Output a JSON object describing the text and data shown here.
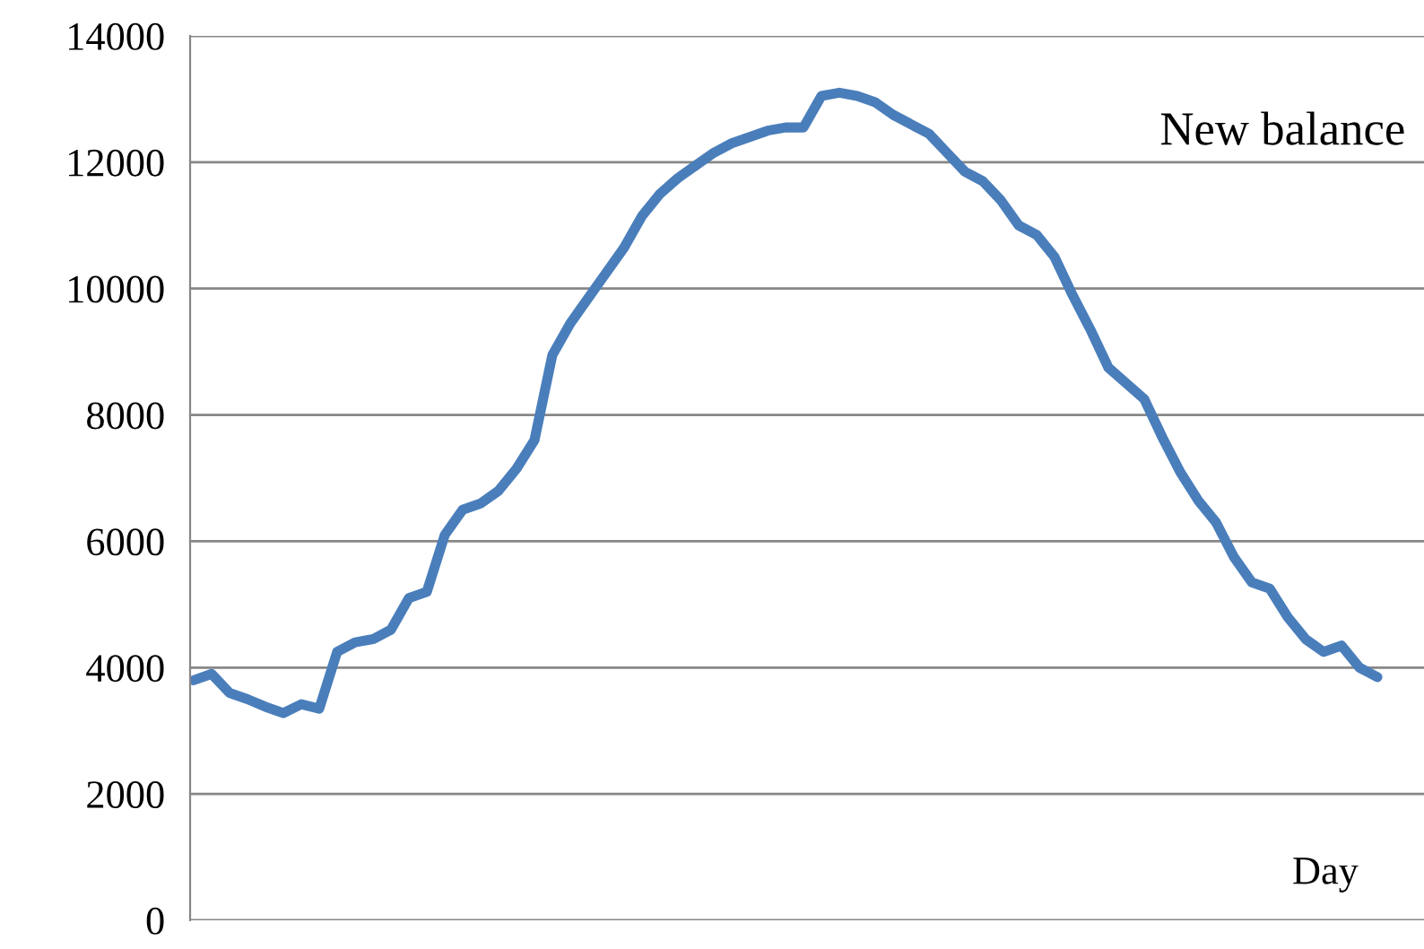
{
  "chart_data": {
    "type": "line",
    "xlabel": "Day",
    "categories": [
      null,
      null,
      null,
      null,
      null,
      null,
      null,
      null,
      null,
      null,
      null,
      null,
      null,
      null,
      null,
      null,
      null,
      null,
      null,
      null,
      null,
      null,
      null,
      null,
      null,
      null,
      null,
      null,
      null,
      null,
      null,
      null,
      null,
      null,
      null,
      null,
      null,
      null,
      null,
      null,
      null,
      null,
      null,
      null,
      null,
      null,
      null,
      null,
      null,
      null,
      null,
      null,
      null,
      null,
      null,
      null,
      null,
      null,
      null,
      null,
      null,
      null,
      null,
      null,
      null,
      null,
      null
    ],
    "series": [
      {
        "name": "New balance",
        "color": "#4a7ebb",
        "values": [
          3800,
          3900,
          3600,
          3500,
          3380,
          3280,
          3420,
          3350,
          4250,
          4400,
          4450,
          4600,
          5100,
          5200,
          6100,
          6500,
          6600,
          6800,
          7150,
          7600,
          8950,
          9450,
          9850,
          10250,
          10650,
          11150,
          11500,
          11750,
          11950,
          12150,
          12300,
          12400,
          12500,
          12550,
          12550,
          13050,
          13100,
          13050,
          12950,
          12750,
          12600,
          12450,
          12150,
          11850,
          11700,
          11400,
          11000,
          10850,
          10500,
          9900,
          9350,
          8750,
          8500,
          8250,
          7650,
          7100,
          6650,
          6300,
          5750,
          5350,
          5250,
          4800,
          4450,
          4250,
          4350,
          4000,
          3850
        ]
      }
    ],
    "ylim": [
      0,
      14000
    ],
    "yticks": [
      0,
      2000,
      4000,
      6000,
      8000,
      10000,
      12000,
      14000
    ],
    "grid": "y",
    "tick_labels": "y",
    "marker": "none",
    "line_style": "solid"
  }
}
